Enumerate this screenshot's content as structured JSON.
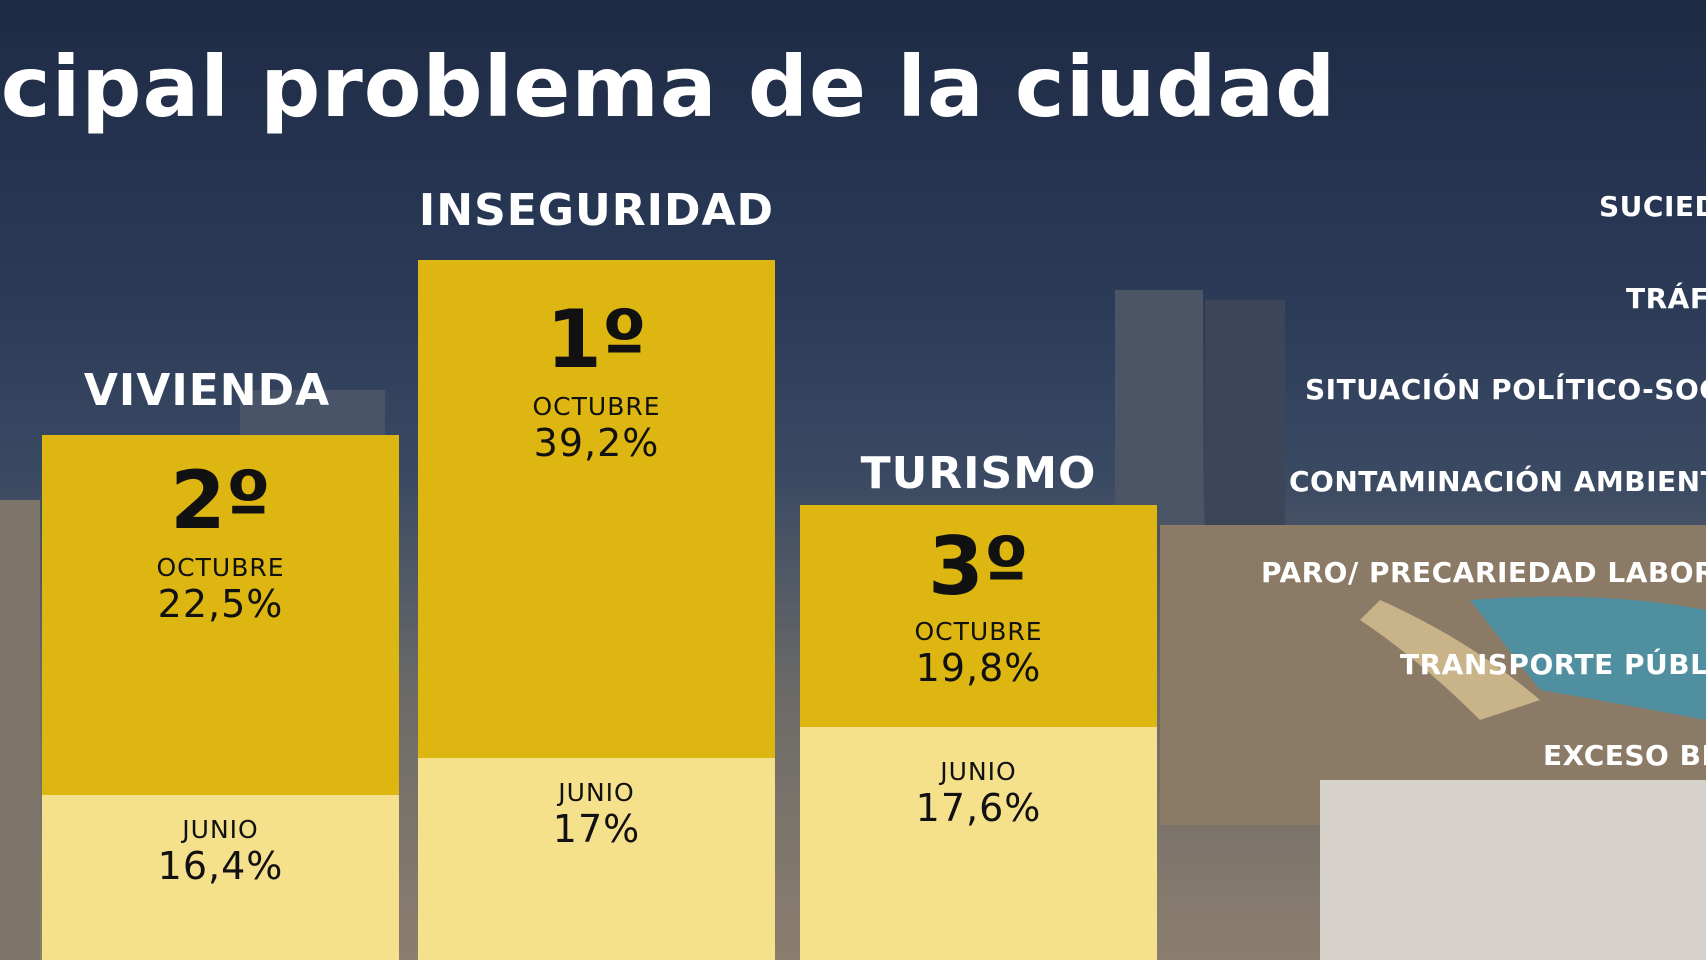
{
  "title": "ncipal problema de la ciudad",
  "colors": {
    "octubre": "#ddb612",
    "junio": "#f5e08c",
    "text": "#ffffff"
  },
  "chart_data": {
    "type": "bar",
    "categories": [
      "VIVIENDA",
      "INSEGURIDAD",
      "TURISMO"
    ],
    "series": [
      {
        "name": "OCTUBRE",
        "values": [
          22.5,
          39.2,
          19.8
        ]
      },
      {
        "name": "JUNIO",
        "values": [
          16.4,
          17,
          17.6
        ]
      }
    ],
    "bars": [
      {
        "label": "VIVIENDA",
        "rank": "2º",
        "oct_month": "OCTUBRE",
        "oct_value": "22,5%",
        "jun_month": "JUNIO",
        "jun_value": "16,4%"
      },
      {
        "label": "INSEGURIDAD",
        "rank": "1º",
        "oct_month": "OCTUBRE",
        "oct_value": "39,2%",
        "jun_month": "JUNIO",
        "jun_value": "17%"
      },
      {
        "label": "TURISMO",
        "rank": "3º",
        "oct_month": "OCTUBRE",
        "oct_value": "19,8%",
        "jun_month": "JUNIO",
        "jun_value": "17,6%"
      }
    ],
    "others": [
      "SUCIEDAD",
      "TRÁFICO",
      "SITUACIÓN POLÍTICO-SOCIAL",
      "CONTAMINACIÓN AMBIENTAL",
      "PARO/ PRECARIEDAD LABORAL",
      "TRANSPORTE PÚBLICO",
      "EXCESO BICIS"
    ]
  }
}
